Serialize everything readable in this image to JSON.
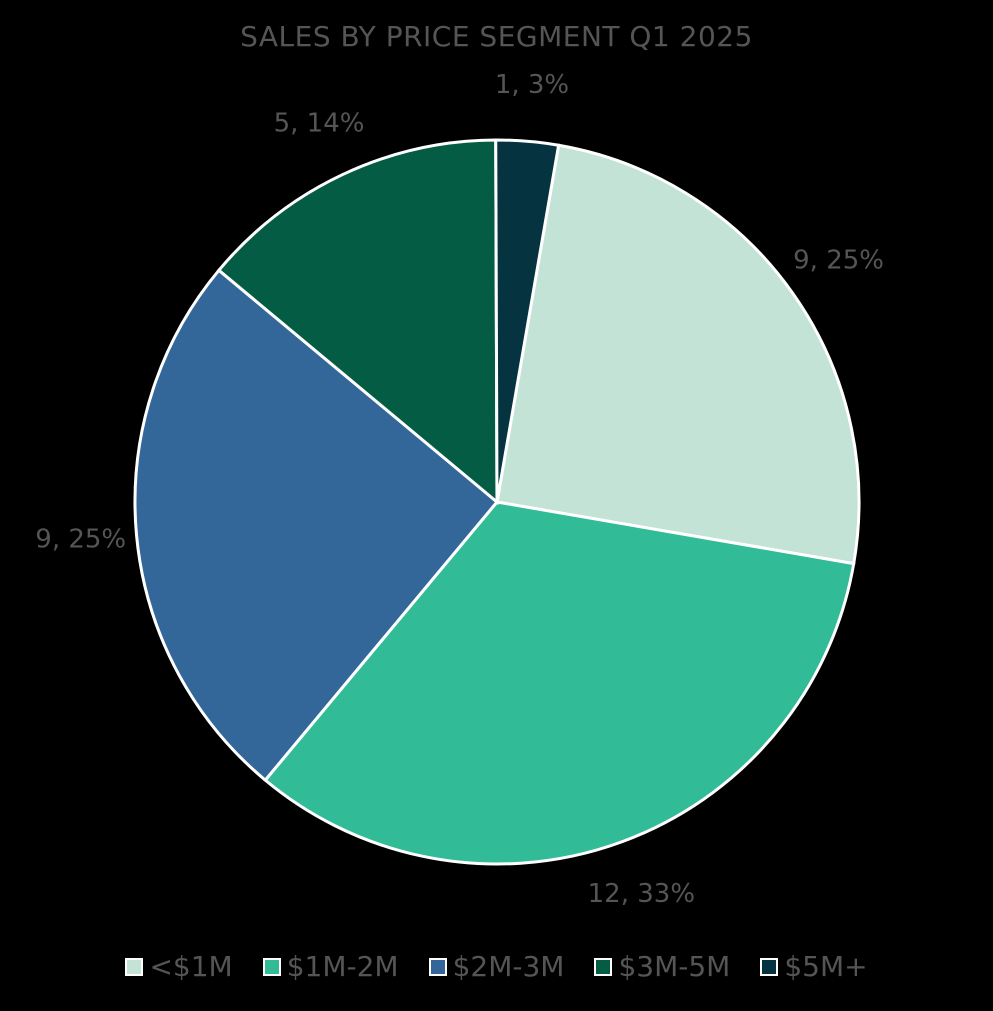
{
  "chart_data": {
    "type": "pie",
    "title": "SALES BY PRICE SEGMENT Q1 2025",
    "categories": [
      "<$1M",
      "$1M-2M",
      "$2M-3M",
      "$3M-5M",
      "$5M+"
    ],
    "values": [
      9,
      12,
      9,
      5,
      1
    ],
    "percentages": [
      25,
      33,
      25,
      14,
      3
    ],
    "data_labels": [
      "9, 25%",
      "12, 33%",
      "9, 25%",
      "5, 14%",
      "1, 3%"
    ],
    "colors": [
      "#c2e3d5",
      "#31bb96",
      "#336699",
      "#045c44",
      "#05333f"
    ],
    "legend": {
      "position": "bottom"
    }
  }
}
